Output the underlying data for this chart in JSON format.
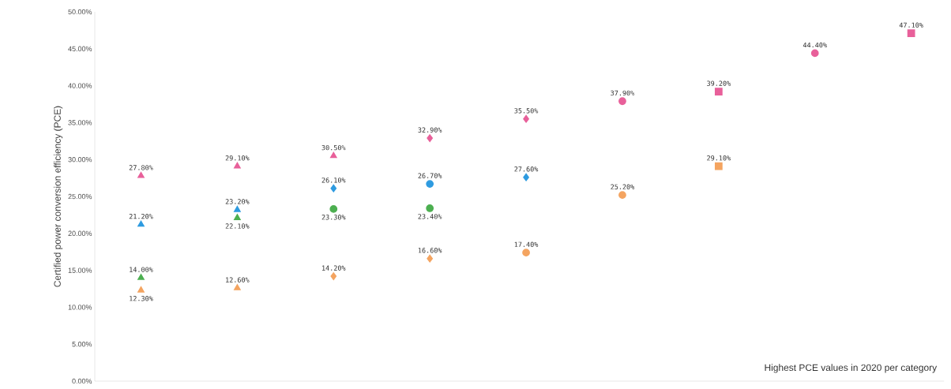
{
  "chart_data": {
    "type": "scatter",
    "ylabel": "Certified power conversion efficiency (PCE)",
    "annotations": [
      "Highest PCE values in 2020 per category"
    ],
    "categories": [
      null,
      null,
      null,
      null,
      null,
      null,
      null,
      null,
      null
    ],
    "ylim": [
      0,
      50
    ],
    "yticks": [
      {
        "value": 0,
        "label": "0.00%"
      },
      {
        "value": 5,
        "label": "5.00%"
      },
      {
        "value": 10,
        "label": "10.00%"
      },
      {
        "value": 15,
        "label": "15.00%"
      },
      {
        "value": 20,
        "label": "20.00%"
      },
      {
        "value": 25,
        "label": "25.00%"
      },
      {
        "value": 30,
        "label": "30.00%"
      },
      {
        "value": 35,
        "label": "35.00%"
      },
      {
        "value": 40,
        "label": "40.00%"
      },
      {
        "value": 45,
        "label": "45.00%"
      },
      {
        "value": 50,
        "label": "50.00%"
      }
    ],
    "grid": false,
    "series": [
      {
        "color": "#e8609a",
        "marker": "triangle",
        "values": [
          27.8,
          29.1,
          null,
          null,
          null,
          null,
          null,
          null,
          null
        ],
        "value_labels": [
          "27.80%",
          "29.10%",
          null,
          null,
          null,
          null,
          null,
          null,
          null
        ]
      },
      {
        "color": "#2e9be0",
        "marker": "triangle",
        "values": [
          21.2,
          null,
          null,
          null,
          null,
          null,
          null,
          null,
          null
        ],
        "value_labels": [
          "21.20%",
          null,
          null,
          null,
          null,
          null,
          null,
          null,
          null
        ]
      },
      {
        "color": "#4caf50",
        "marker": "triangle",
        "values": [
          14.0,
          null,
          null,
          null,
          null,
          null,
          null,
          null,
          null
        ],
        "value_labels": [
          "14.00%",
          null,
          null,
          null,
          null,
          null,
          null,
          null,
          null
        ]
      },
      {
        "color": "#f4a460",
        "marker": "triangle",
        "values": [
          12.3,
          null,
          null,
          null,
          null,
          null,
          null,
          null,
          null
        ],
        "value_labels": [
          "12.30%",
          null,
          null,
          null,
          null,
          null,
          null,
          null,
          null
        ]
      },
      {
        "color": "#2e9be0",
        "marker": "triangle",
        "values": [
          null,
          23.2,
          null,
          null,
          null,
          null,
          null,
          null,
          null
        ],
        "value_labels": [
          null,
          "23.20%",
          null,
          null,
          null,
          null,
          null,
          null,
          null
        ]
      },
      {
        "color": "#4caf50",
        "marker": "triangle",
        "values": [
          null,
          22.1,
          null,
          null,
          null,
          null,
          null,
          null,
          null
        ],
        "value_labels": [
          null,
          "22.10%",
          null,
          null,
          null,
          null,
          null,
          null,
          null
        ]
      },
      {
        "color": "#f4a460",
        "marker": "triangle",
        "values": [
          null,
          12.6,
          null,
          null,
          null,
          null,
          null,
          null,
          null
        ],
        "value_labels": [
          null,
          "12.60%",
          null,
          null,
          null,
          null,
          null,
          null,
          null
        ]
      },
      {
        "color": "#e8609a",
        "marker": "triangle",
        "values": [
          null,
          null,
          30.5,
          null,
          null,
          null,
          null,
          null,
          null
        ],
        "value_labels": [
          null,
          null,
          "30.50%",
          null,
          null,
          null,
          null,
          null,
          null
        ]
      },
      {
        "color": "#2e9be0",
        "marker": "diamond",
        "values": [
          null,
          null,
          26.1,
          null,
          null,
          null,
          null,
          null,
          null
        ],
        "value_labels": [
          null,
          null,
          "26.10%",
          null,
          null,
          null,
          null,
          null,
          null
        ]
      },
      {
        "color": "#4caf50",
        "marker": "circle",
        "values": [
          null,
          null,
          23.3,
          null,
          null,
          null,
          null,
          null,
          null
        ],
        "value_labels": [
          null,
          null,
          "23.30%",
          null,
          null,
          null,
          null,
          null,
          null
        ]
      },
      {
        "color": "#f4a460",
        "marker": "diamond",
        "values": [
          null,
          null,
          14.2,
          null,
          null,
          null,
          null,
          null,
          null
        ],
        "value_labels": [
          null,
          null,
          "14.20%",
          null,
          null,
          null,
          null,
          null,
          null
        ]
      },
      {
        "color": "#e8609a",
        "marker": "diamond",
        "values": [
          null,
          null,
          null,
          32.9,
          null,
          null,
          null,
          null,
          null
        ],
        "value_labels": [
          null,
          null,
          null,
          "32.90%",
          null,
          null,
          null,
          null,
          null
        ]
      },
      {
        "color": "#2e9be0",
        "marker": "circle",
        "values": [
          null,
          null,
          null,
          26.7,
          null,
          null,
          null,
          null,
          null
        ],
        "value_labels": [
          null,
          null,
          null,
          "26.70%",
          null,
          null,
          null,
          null,
          null
        ]
      },
      {
        "color": "#4caf50",
        "marker": "circle",
        "values": [
          null,
          null,
          null,
          23.4,
          null,
          null,
          null,
          null,
          null
        ],
        "value_labels": [
          null,
          null,
          null,
          "23.40%",
          null,
          null,
          null,
          null,
          null
        ]
      },
      {
        "color": "#f4a460",
        "marker": "diamond",
        "values": [
          null,
          null,
          null,
          16.6,
          null,
          null,
          null,
          null,
          null
        ],
        "value_labels": [
          null,
          null,
          null,
          "16.60%",
          null,
          null,
          null,
          null,
          null
        ]
      },
      {
        "color": "#e8609a",
        "marker": "diamond",
        "values": [
          null,
          null,
          null,
          null,
          35.5,
          null,
          null,
          null,
          null
        ],
        "value_labels": [
          null,
          null,
          null,
          null,
          "35.50%",
          null,
          null,
          null,
          null
        ]
      },
      {
        "color": "#2e9be0",
        "marker": "diamond",
        "values": [
          null,
          null,
          null,
          null,
          27.6,
          null,
          null,
          null,
          null
        ],
        "value_labels": [
          null,
          null,
          null,
          null,
          "27.60%",
          null,
          null,
          null,
          null
        ]
      },
      {
        "color": "#f4a460",
        "marker": "circle",
        "values": [
          null,
          null,
          null,
          null,
          17.4,
          null,
          null,
          null,
          null
        ],
        "value_labels": [
          null,
          null,
          null,
          null,
          "17.40%",
          null,
          null,
          null,
          null
        ]
      },
      {
        "color": "#e8609a",
        "marker": "circle",
        "values": [
          null,
          null,
          null,
          null,
          null,
          37.9,
          null,
          null,
          null
        ],
        "value_labels": [
          null,
          null,
          null,
          null,
          null,
          "37.90%",
          null,
          null,
          null
        ]
      },
      {
        "color": "#f4a460",
        "marker": "circle",
        "values": [
          null,
          null,
          null,
          null,
          null,
          25.2,
          null,
          null,
          null
        ],
        "value_labels": [
          null,
          null,
          null,
          null,
          null,
          "25.20%",
          null,
          null,
          null
        ]
      },
      {
        "color": "#e8609a",
        "marker": "square",
        "values": [
          null,
          null,
          null,
          null,
          null,
          null,
          39.2,
          null,
          null
        ],
        "value_labels": [
          null,
          null,
          null,
          null,
          null,
          null,
          "39.20%",
          null,
          null
        ]
      },
      {
        "color": "#f4a460",
        "marker": "square",
        "values": [
          null,
          null,
          null,
          null,
          null,
          null,
          29.1,
          null,
          null
        ],
        "value_labels": [
          null,
          null,
          null,
          null,
          null,
          null,
          "29.10%",
          null,
          null
        ]
      },
      {
        "color": "#e8609a",
        "marker": "circle",
        "values": [
          null,
          null,
          null,
          null,
          null,
          null,
          null,
          44.4,
          null
        ],
        "value_labels": [
          null,
          null,
          null,
          null,
          null,
          null,
          null,
          "44.40%",
          null
        ]
      },
      {
        "color": "#e8609a",
        "marker": "square",
        "values": [
          null,
          null,
          null,
          null,
          null,
          null,
          null,
          null,
          47.1
        ],
        "value_labels": [
          null,
          null,
          null,
          null,
          null,
          null,
          null,
          null,
          "47.10%"
        ]
      }
    ]
  }
}
